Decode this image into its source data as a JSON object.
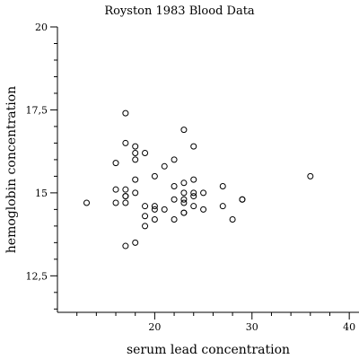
{
  "chart_data": {
    "type": "scatter",
    "title": "Royston 1983 Blood Data",
    "xlabel": "serum lead concentration",
    "ylabel": "hemoglobin concentration",
    "xlim": [
      10,
      41
    ],
    "ylim": [
      11.4,
      20
    ],
    "xticks_major": [
      20,
      30,
      40
    ],
    "xtick_labels": [
      "20",
      "30",
      "40"
    ],
    "yticks_major": [
      12.5,
      15,
      17.5,
      20
    ],
    "ytick_labels": [
      "12,5",
      "15",
      "17,5",
      "20"
    ],
    "grid": false,
    "legend": "none",
    "marker_color": "#000000",
    "series": [
      {
        "points": [
          [
            13,
            14.7
          ],
          [
            16,
            15.9
          ],
          [
            16,
            15.1
          ],
          [
            16,
            14.7
          ],
          [
            17,
            17.4
          ],
          [
            17,
            16.5
          ],
          [
            17,
            15.1
          ],
          [
            17,
            14.9
          ],
          [
            17,
            14.9
          ],
          [
            17,
            14.7
          ],
          [
            17,
            13.4
          ],
          [
            18,
            16.4
          ],
          [
            18,
            16.2
          ],
          [
            18,
            16.0
          ],
          [
            18,
            15.4
          ],
          [
            18,
            15.0
          ],
          [
            18,
            13.5
          ],
          [
            19,
            16.2
          ],
          [
            19,
            14.6
          ],
          [
            19,
            14.3
          ],
          [
            19,
            14.0
          ],
          [
            20,
            15.5
          ],
          [
            20,
            14.6
          ],
          [
            20,
            14.5
          ],
          [
            20,
            14.2
          ],
          [
            21,
            15.8
          ],
          [
            21,
            14.5
          ],
          [
            22,
            16.0
          ],
          [
            22,
            15.2
          ],
          [
            22,
            14.8
          ],
          [
            22,
            14.2
          ],
          [
            23,
            16.9
          ],
          [
            23,
            15.3
          ],
          [
            23,
            15.0
          ],
          [
            23,
            14.8
          ],
          [
            23,
            14.7
          ],
          [
            23,
            14.4
          ],
          [
            23,
            14.4
          ],
          [
            24,
            16.4
          ],
          [
            24,
            15.4
          ],
          [
            24,
            15.0
          ],
          [
            24,
            14.9
          ],
          [
            24,
            14.6
          ],
          [
            25,
            15.0
          ],
          [
            25,
            14.5
          ],
          [
            27,
            15.2
          ],
          [
            27,
            14.6
          ],
          [
            28,
            14.2
          ],
          [
            29,
            14.8
          ],
          [
            29,
            14.8
          ],
          [
            36,
            15.5
          ]
        ]
      }
    ]
  }
}
